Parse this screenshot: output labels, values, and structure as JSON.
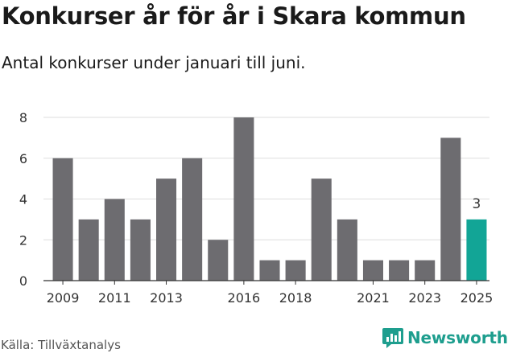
{
  "header": {
    "title": "Konkurser år för år i Skara kommun",
    "subtitle": "Antal konkurser under januari till juni."
  },
  "footer": {
    "source": "Källa: Tillväxtanalys",
    "brand": "Newsworthy",
    "brand_icon": "bar-chart-icon"
  },
  "colors": {
    "bar": "#6d6c70",
    "highlight": "#12a596",
    "grid": "#dddddd",
    "axis": "#333333",
    "brand": "#1e9e8e"
  },
  "chart_data": {
    "type": "bar",
    "categories": [
      "2009",
      "2010",
      "2011",
      "2012",
      "2013",
      "2014",
      "2015",
      "2016",
      "2017",
      "2018",
      "2019",
      "2020",
      "2021",
      "2022",
      "2023",
      "2024",
      "2025"
    ],
    "values": [
      6,
      3,
      4,
      3,
      5,
      6,
      2,
      8,
      1,
      1,
      5,
      3,
      1,
      1,
      1,
      7,
      3
    ],
    "x_tick_labels": [
      "2009",
      "2011",
      "2013",
      "2016",
      "2018",
      "2021",
      "2023",
      "2025"
    ],
    "y_ticks": [
      0,
      2,
      4,
      6,
      8
    ],
    "ylim": [
      0,
      8
    ],
    "highlight_category": "2025",
    "data_labels": [
      {
        "category": "2025",
        "text": "3"
      }
    ],
    "grid": true,
    "title": "Konkurser år för år i Skara kommun",
    "xlabel": "",
    "ylabel": ""
  }
}
